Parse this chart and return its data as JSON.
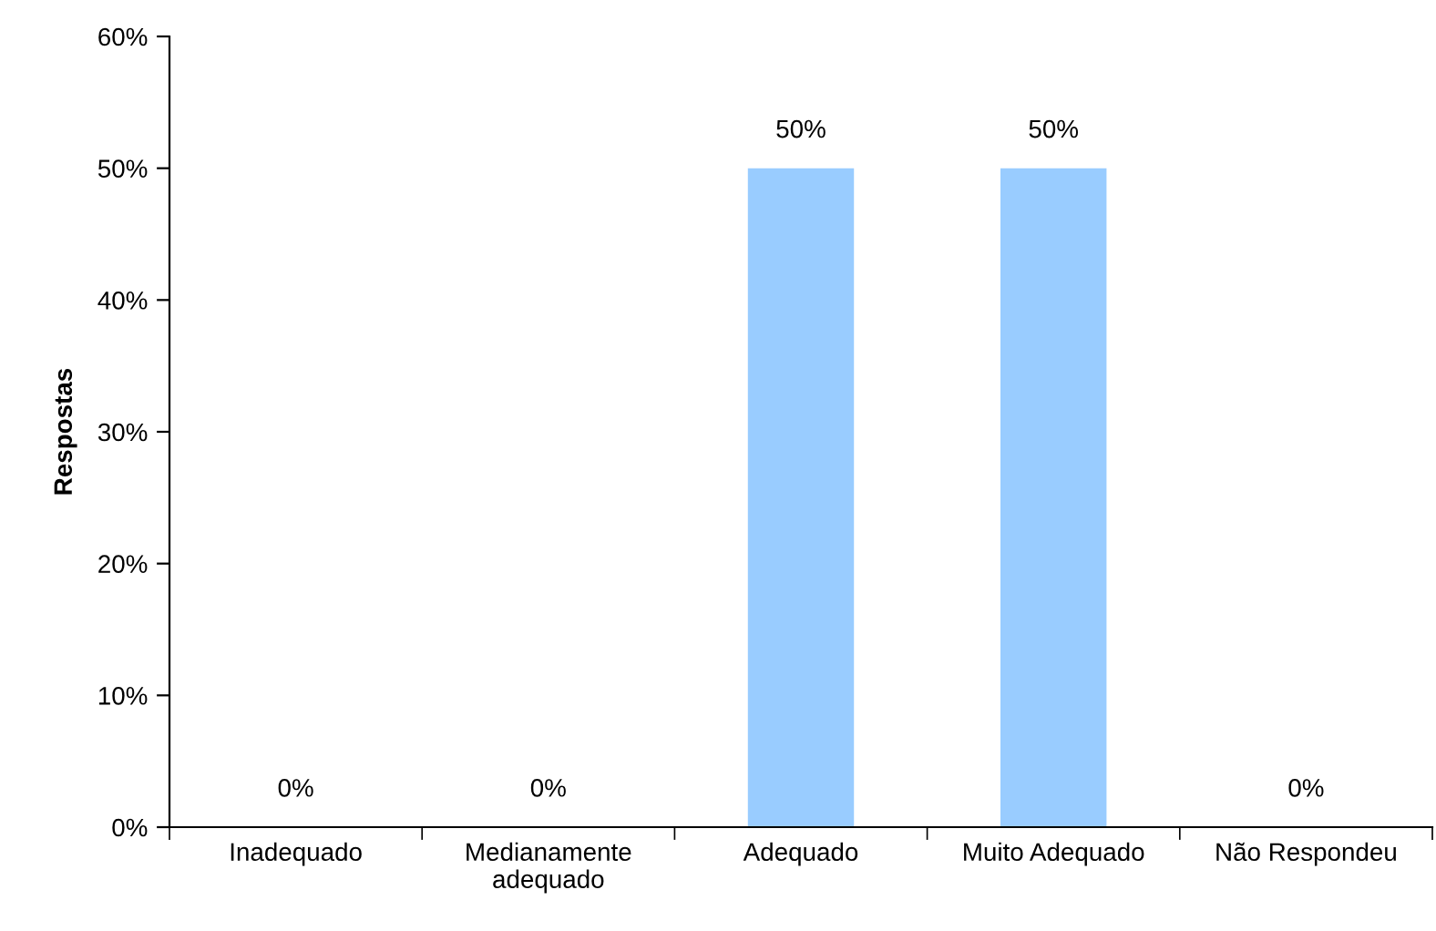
{
  "chart_data": {
    "type": "bar",
    "ylabel": "Respostas",
    "categories": [
      "Inadequado",
      "Medianamente\nadequado",
      "Adequado",
      "Muito Adequado",
      "Não Respondeu"
    ],
    "values": [
      0,
      0,
      50,
      50,
      0
    ],
    "color": "#99ccff",
    "value_labels": [
      "0%",
      "0%",
      "50%",
      "50%",
      "0%"
    ],
    "ylim": [
      0,
      60
    ],
    "yticks": [
      {
        "value": 0,
        "label": "0%"
      },
      {
        "value": 10,
        "label": "10%"
      },
      {
        "value": 20,
        "label": "20%"
      },
      {
        "value": 30,
        "label": "30%"
      },
      {
        "value": 40,
        "label": "40%"
      },
      {
        "value": 50,
        "label": "50%"
      },
      {
        "value": 60,
        "label": "60%"
      }
    ],
    "grid": false,
    "legend": false
  }
}
